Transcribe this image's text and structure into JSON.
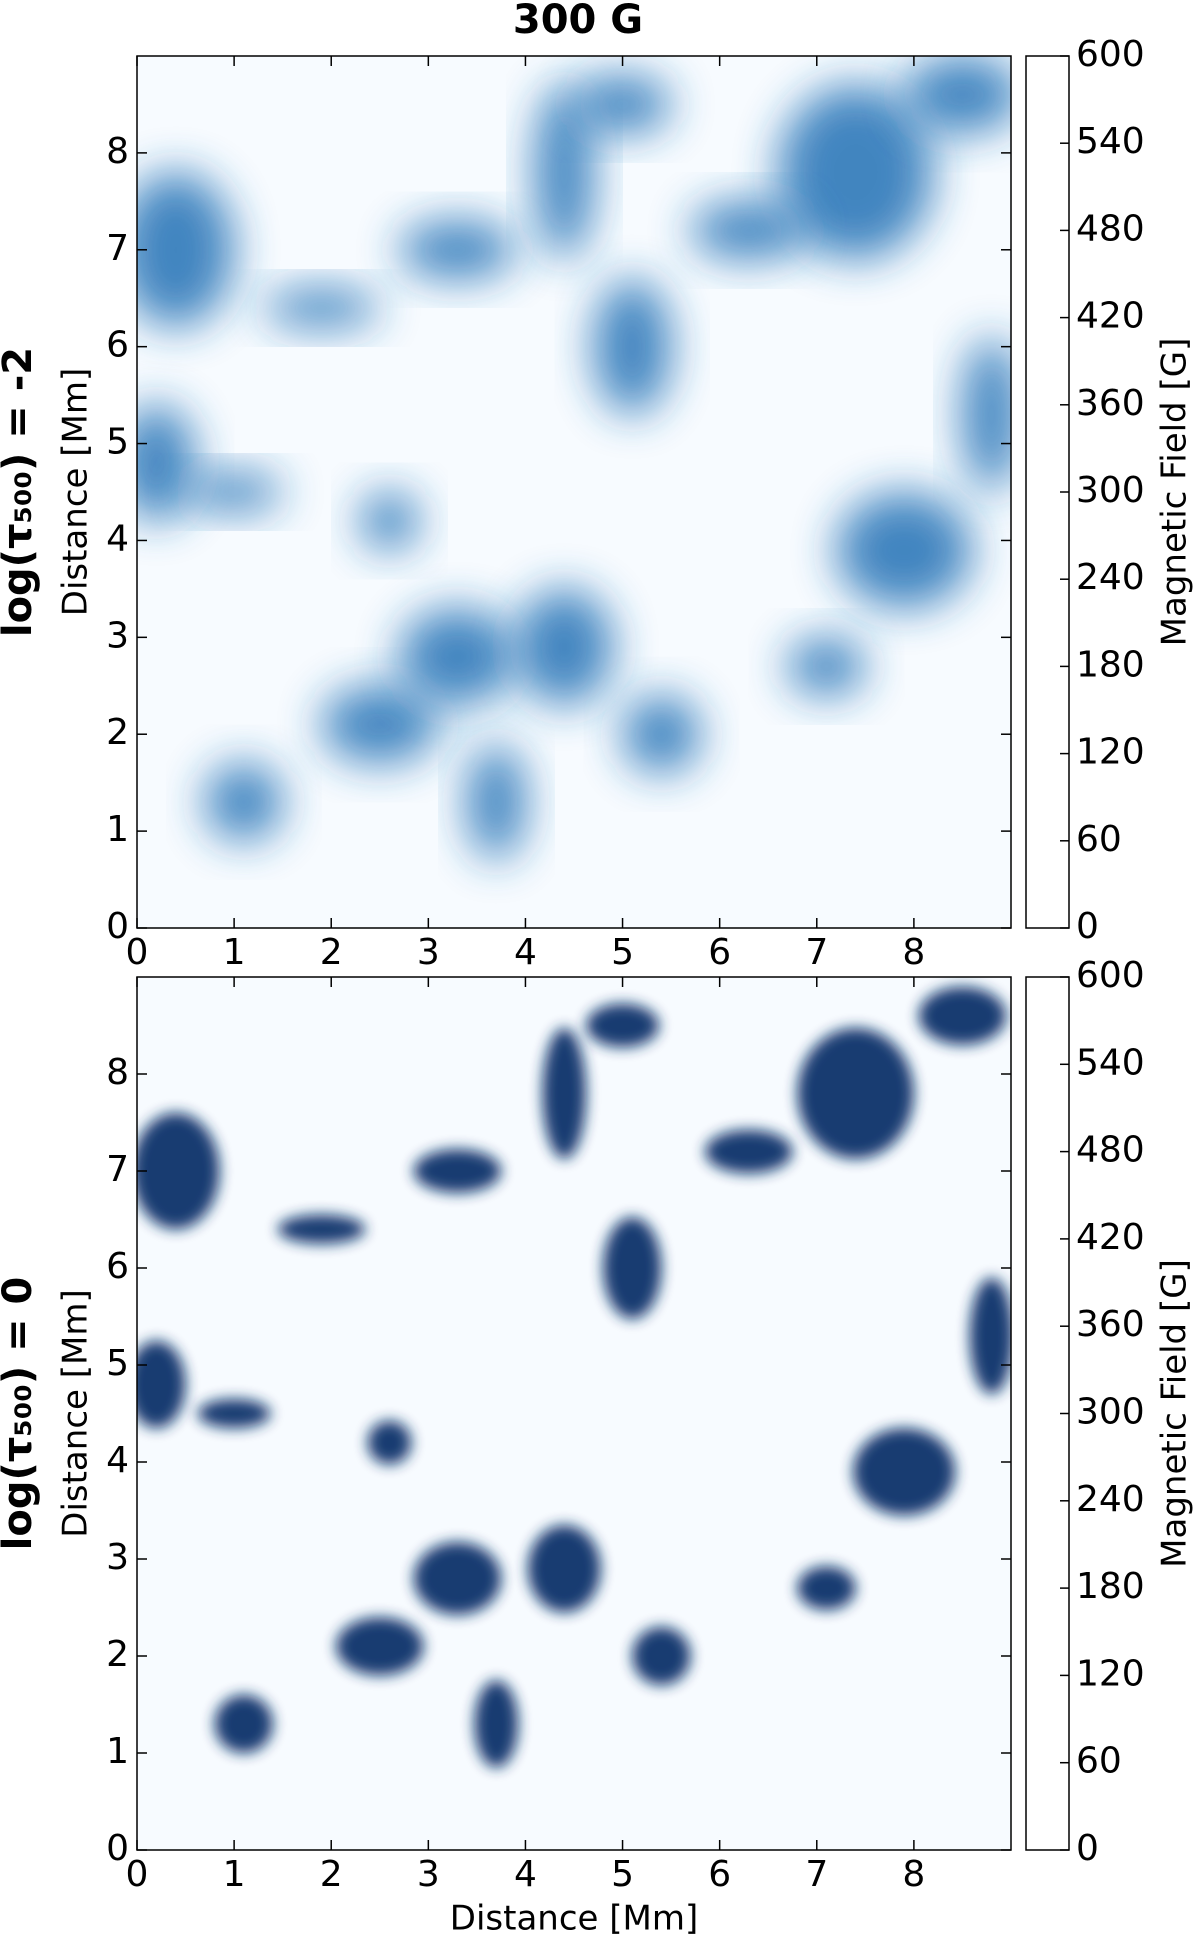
{
  "chart_data": [
    {
      "type": "heatmap",
      "title": "300 G",
      "row_label": "log(τ₅₀₀) = -2",
      "ylabel": "Distance [Mm]",
      "xlim": [
        0,
        9
      ],
      "ylim": [
        0,
        9
      ],
      "xticks": [
        0,
        1,
        2,
        3,
        4,
        5,
        6,
        7,
        8
      ],
      "yticks": [
        0,
        1,
        2,
        3,
        4,
        5,
        6,
        7,
        8
      ],
      "colorbar": {
        "label": "Magnetic Field [G]",
        "lim": [
          0,
          600
        ],
        "ticks": [
          0,
          60,
          120,
          180,
          240,
          300,
          360,
          420,
          480,
          540,
          600
        ]
      },
      "colormap": [
        "#f7fbff",
        "#c6dbef",
        "#6baed6",
        "#2171b5",
        "#08306b"
      ]
    },
    {
      "type": "heatmap",
      "row_label": "log(τ₅₀₀) = 0",
      "xlabel": "Distance [Mm]",
      "ylabel": "Distance [Mm]",
      "xlim": [
        0,
        9
      ],
      "ylim": [
        0,
        9
      ],
      "xticks": [
        0,
        1,
        2,
        3,
        4,
        5,
        6,
        7,
        8
      ],
      "yticks": [
        0,
        1,
        2,
        3,
        4,
        5,
        6,
        7,
        8
      ],
      "colorbar": {
        "label": "Magnetic Field [G]",
        "lim": [
          0,
          600
        ],
        "ticks": [
          0,
          60,
          120,
          180,
          240,
          300,
          360,
          420,
          480,
          540,
          600
        ]
      },
      "colormap": [
        "#f7fbff",
        "#c6dbef",
        "#6baed6",
        "#2171b5",
        "#08306b"
      ]
    }
  ]
}
